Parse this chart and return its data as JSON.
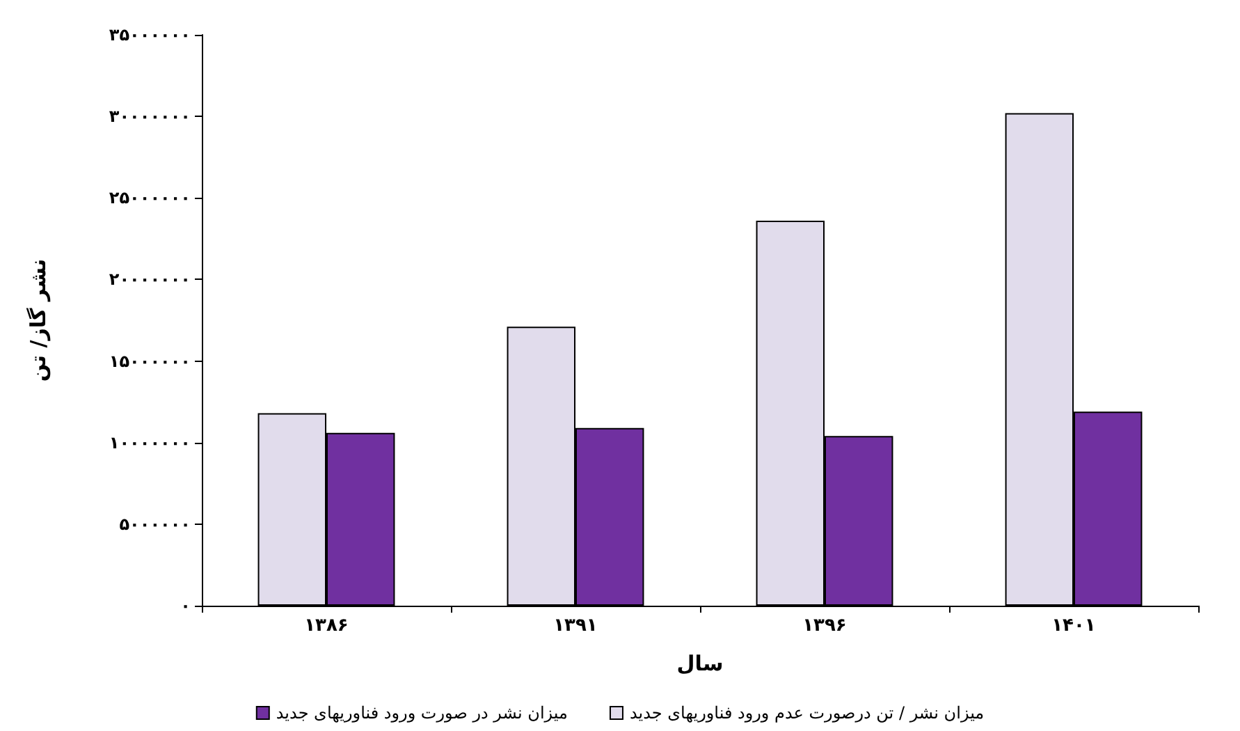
{
  "chart_data": {
    "type": "bar",
    "xlabel": "سال",
    "ylabel": "نشر گاز/ تن",
    "categories": [
      "۱۳۸۶",
      "۱۳۹۱",
      "۱۳۹۶",
      "۱۴۰۱"
    ],
    "series": [
      {
        "name": "میزان نشر / تن درصورت عدم ورود فناوریهای جدید",
        "color": "#e1dcec",
        "values": [
          11800000,
          17100000,
          23600000,
          30200000
        ]
      },
      {
        "name": "میزان نشر در صورت ورود فناوریهای جدید",
        "color": "#7030a0",
        "values": [
          10600000,
          10900000,
          10400000,
          11900000
        ]
      }
    ],
    "ylim": [
      0,
      35000000
    ],
    "yticks": [
      {
        "value": 0,
        "label": "۰"
      },
      {
        "value": 5000000,
        "label": "۵۰۰۰۰۰۰"
      },
      {
        "value": 10000000,
        "label": "۱۰۰۰۰۰۰۰"
      },
      {
        "value": 15000000,
        "label": "۱۵۰۰۰۰۰۰"
      },
      {
        "value": 20000000,
        "label": "۲۰۰۰۰۰۰۰"
      },
      {
        "value": 25000000,
        "label": "۲۵۰۰۰۰۰۰"
      },
      {
        "value": 30000000,
        "label": "۳۰۰۰۰۰۰۰"
      },
      {
        "value": 35000000,
        "label": "۳۵۰۰۰۰۰۰"
      }
    ],
    "grid": false,
    "legend": "bottom"
  }
}
